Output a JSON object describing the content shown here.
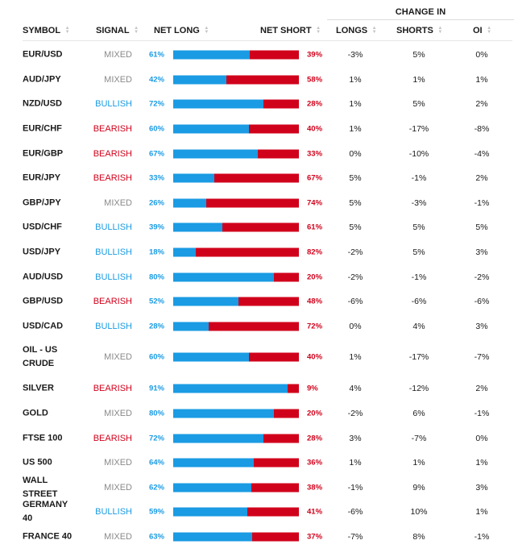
{
  "header": {
    "group_title": "CHANGE IN",
    "columns": {
      "symbol": "SYMBOL",
      "signal": "SIGNAL",
      "net_long": "NET LONG",
      "net_short": "NET SHORT",
      "longs": "LONGS",
      "shorts": "SHORTS",
      "oi": "OI"
    }
  },
  "colors": {
    "long": "#1a9be3",
    "short": "#d0021b",
    "mixed": "#8a8a8a"
  },
  "rows": [
    {
      "symbol": "EUR/USD",
      "signal": "MIXED",
      "long_pct": "61%",
      "short_pct": "39%",
      "long_fraction": 0.61,
      "longs": "-3%",
      "shorts": "5%",
      "oi": "0%"
    },
    {
      "symbol": "AUD/JPY",
      "signal": "MIXED",
      "long_pct": "42%",
      "short_pct": "58%",
      "long_fraction": 0.42,
      "longs": "1%",
      "shorts": "1%",
      "oi": "1%"
    },
    {
      "symbol": "NZD/USD",
      "signal": "BULLISH",
      "long_pct": "72%",
      "short_pct": "28%",
      "long_fraction": 0.72,
      "longs": "1%",
      "shorts": "5%",
      "oi": "2%"
    },
    {
      "symbol": "EUR/CHF",
      "signal": "BEARISH",
      "long_pct": "60%",
      "short_pct": "40%",
      "long_fraction": 0.6,
      "longs": "1%",
      "shorts": "-17%",
      "oi": "-8%"
    },
    {
      "symbol": "EUR/GBP",
      "signal": "BEARISH",
      "long_pct": "67%",
      "short_pct": "33%",
      "long_fraction": 0.67,
      "longs": "0%",
      "shorts": "-10%",
      "oi": "-4%"
    },
    {
      "symbol": "EUR/JPY",
      "signal": "BEARISH",
      "long_pct": "33%",
      "short_pct": "67%",
      "long_fraction": 0.33,
      "longs": "5%",
      "shorts": "-1%",
      "oi": "2%"
    },
    {
      "symbol": "GBP/JPY",
      "signal": "MIXED",
      "long_pct": "26%",
      "short_pct": "74%",
      "long_fraction": 0.26,
      "longs": "5%",
      "shorts": "-3%",
      "oi": "-1%"
    },
    {
      "symbol": "USD/CHF",
      "signal": "BULLISH",
      "long_pct": "39%",
      "short_pct": "61%",
      "long_fraction": 0.39,
      "longs": "5%",
      "shorts": "5%",
      "oi": "5%"
    },
    {
      "symbol": "USD/JPY",
      "signal": "BULLISH",
      "long_pct": "18%",
      "short_pct": "82%",
      "long_fraction": 0.18,
      "longs": "-2%",
      "shorts": "5%",
      "oi": "3%"
    },
    {
      "symbol": "AUD/USD",
      "signal": "BULLISH",
      "long_pct": "80%",
      "short_pct": "20%",
      "long_fraction": 0.8,
      "longs": "-2%",
      "shorts": "-1%",
      "oi": "-2%"
    },
    {
      "symbol": "GBP/USD",
      "signal": "BEARISH",
      "long_pct": "52%",
      "short_pct": "48%",
      "long_fraction": 0.52,
      "longs": "-6%",
      "shorts": "-6%",
      "oi": "-6%"
    },
    {
      "symbol": "USD/CAD",
      "signal": "BULLISH",
      "long_pct": "28%",
      "short_pct": "72%",
      "long_fraction": 0.28,
      "longs": "0%",
      "shorts": "4%",
      "oi": "3%"
    },
    {
      "symbol": "OIL - US CRUDE",
      "signal": "MIXED",
      "long_pct": "60%",
      "short_pct": "40%",
      "long_fraction": 0.6,
      "longs": "1%",
      "shorts": "-17%",
      "oi": "-7%"
    },
    {
      "symbol": "SILVER",
      "signal": "BEARISH",
      "long_pct": "91%",
      "short_pct": "9%",
      "long_fraction": 0.91,
      "longs": "4%",
      "shorts": "-12%",
      "oi": "2%"
    },
    {
      "symbol": "GOLD",
      "signal": "MIXED",
      "long_pct": "80%",
      "short_pct": "20%",
      "long_fraction": 0.8,
      "longs": "-2%",
      "shorts": "6%",
      "oi": "-1%"
    },
    {
      "symbol": "FTSE 100",
      "signal": "BEARISH",
      "long_pct": "72%",
      "short_pct": "28%",
      "long_fraction": 0.72,
      "longs": "3%",
      "shorts": "-7%",
      "oi": "0%"
    },
    {
      "symbol": "US 500",
      "signal": "MIXED",
      "long_pct": "64%",
      "short_pct": "36%",
      "long_fraction": 0.64,
      "longs": "1%",
      "shorts": "1%",
      "oi": "1%"
    },
    {
      "symbol": "WALL STREET",
      "signal": "MIXED",
      "long_pct": "62%",
      "short_pct": "38%",
      "long_fraction": 0.62,
      "longs": "-1%",
      "shorts": "9%",
      "oi": "3%"
    },
    {
      "symbol": "GERMANY 40",
      "signal": "BULLISH",
      "long_pct": "59%",
      "short_pct": "41%",
      "long_fraction": 0.59,
      "longs": "-6%",
      "shorts": "10%",
      "oi": "1%"
    },
    {
      "symbol": "FRANCE 40",
      "signal": "MIXED",
      "long_pct": "63%",
      "short_pct": "37%",
      "long_fraction": 0.63,
      "longs": "-7%",
      "shorts": "8%",
      "oi": "-1%"
    }
  ]
}
